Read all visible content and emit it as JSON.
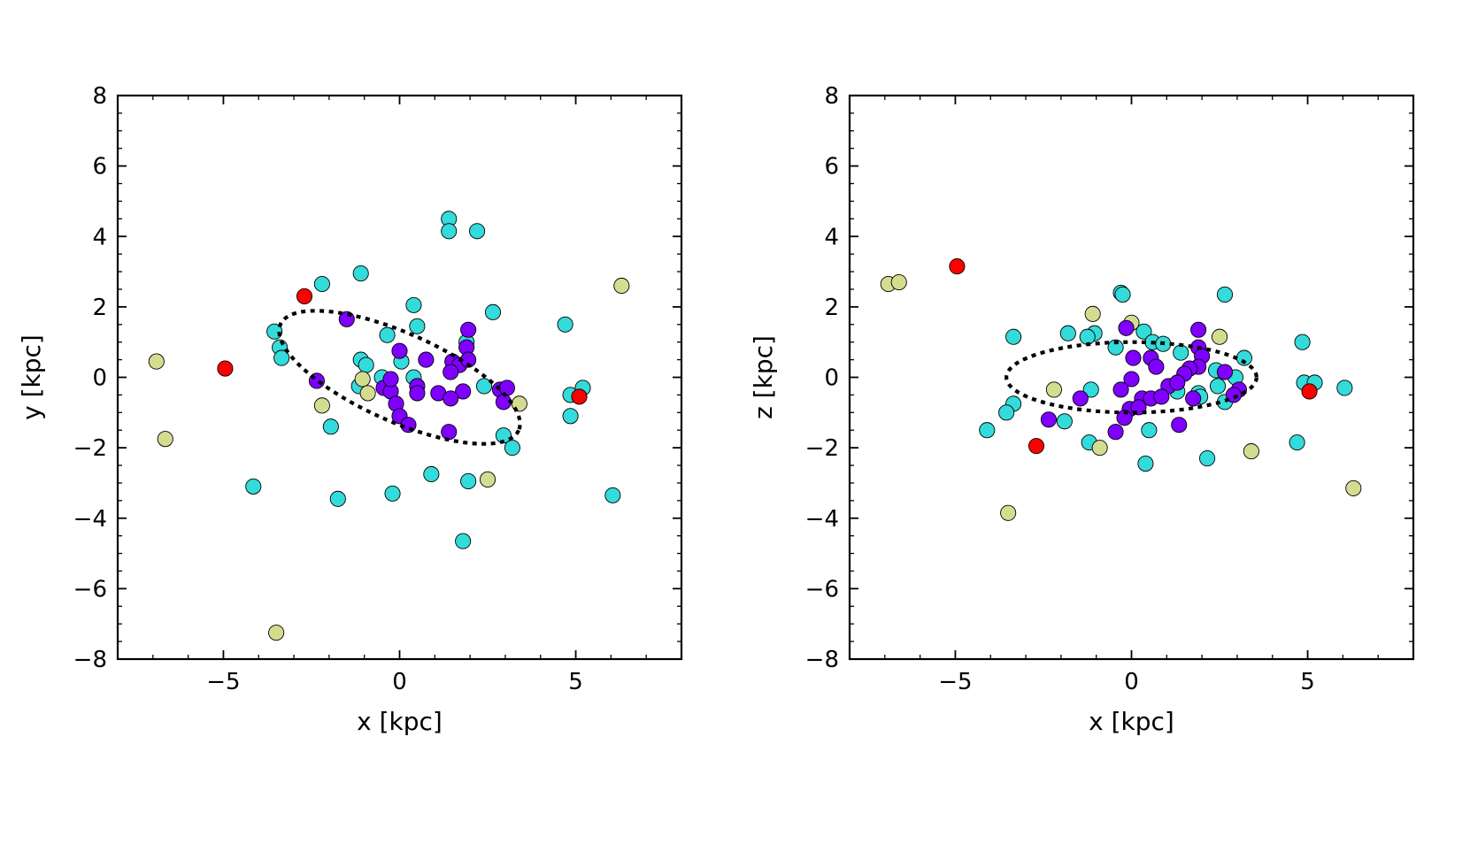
{
  "colors": {
    "purple": "#7f00ff",
    "cyan": "#33dbdb",
    "khaki": "#d4dd8f",
    "red": "#ff0000",
    "frame": "#000000",
    "ellipse": "#000000"
  },
  "chart_data": [
    {
      "type": "scatter",
      "id": "xy",
      "title": "",
      "xlabel": "x [kpc]",
      "ylabel": "y [kpc]",
      "xlim": [
        -8,
        8
      ],
      "ylim": [
        -8,
        8
      ],
      "xticks": [
        -5,
        0,
        5
      ],
      "xtick_labels": [
        "−5",
        "0",
        "5"
      ],
      "yticks": [
        -8,
        -6,
        -4,
        -2,
        0,
        2,
        4,
        6,
        8
      ],
      "ytick_labels": [
        "−8",
        "−6",
        "−4",
        "−2",
        "0",
        "2",
        "4",
        "6",
        "8"
      ],
      "ellipse": {
        "center": [
          0,
          0
        ],
        "semi_major": 3.7,
        "semi_minor": 1.25,
        "angle_deg": -24,
        "style": "dotted"
      },
      "series": [
        {
          "name": "cyan",
          "color": "cyan",
          "points": [
            [
              1.4,
              4.5
            ],
            [
              1.4,
              4.15
            ],
            [
              2.2,
              4.15
            ],
            [
              -1.1,
              2.95
            ],
            [
              -2.2,
              2.65
            ],
            [
              0.4,
              2.05
            ],
            [
              2.65,
              1.85
            ],
            [
              4.7,
              1.5
            ],
            [
              -3.55,
              1.3
            ],
            [
              0.5,
              1.45
            ],
            [
              -0.35,
              1.2
            ],
            [
              1.9,
              1.0
            ],
            [
              -3.4,
              0.85
            ],
            [
              -3.35,
              0.55
            ],
            [
              -1.1,
              0.5
            ],
            [
              -0.95,
              0.35
            ],
            [
              0.05,
              0.45
            ],
            [
              -0.5,
              0.0
            ],
            [
              0.4,
              0.0
            ],
            [
              -1.15,
              -0.25
            ],
            [
              2.4,
              -0.25
            ],
            [
              4.85,
              -0.5
            ],
            [
              5.2,
              -0.3
            ],
            [
              4.85,
              -1.1
            ],
            [
              -1.95,
              -1.4
            ],
            [
              2.95,
              -1.65
            ],
            [
              3.2,
              -2.0
            ],
            [
              0.9,
              -2.75
            ],
            [
              1.95,
              -2.95
            ],
            [
              -4.15,
              -3.1
            ],
            [
              -1.75,
              -3.45
            ],
            [
              -0.2,
              -3.3
            ],
            [
              6.05,
              -3.35
            ],
            [
              1.8,
              -4.65
            ]
          ]
        },
        {
          "name": "khaki",
          "color": "khaki",
          "points": [
            [
              6.3,
              2.6
            ],
            [
              -6.9,
              0.45
            ],
            [
              -6.65,
              -1.75
            ],
            [
              -1.05,
              -0.05
            ],
            [
              -0.9,
              -0.45
            ],
            [
              -2.2,
              -0.8
            ],
            [
              3.4,
              -0.75
            ],
            [
              2.5,
              -2.9
            ],
            [
              -3.5,
              -7.25
            ]
          ]
        },
        {
          "name": "red",
          "color": "red",
          "points": [
            [
              -2.7,
              2.3
            ],
            [
              -4.95,
              0.25
            ],
            [
              5.1,
              -0.55
            ]
          ]
        },
        {
          "name": "purple",
          "color": "purple",
          "points": [
            [
              -1.5,
              1.65
            ],
            [
              1.95,
              1.35
            ],
            [
              1.9,
              0.85
            ],
            [
              0.75,
              0.5
            ],
            [
              1.5,
              0.45
            ],
            [
              1.7,
              0.35
            ],
            [
              1.95,
              0.5
            ],
            [
              1.45,
              0.15
            ],
            [
              0.0,
              0.75
            ],
            [
              -2.35,
              -0.1
            ],
            [
              -0.45,
              -0.3
            ],
            [
              -0.25,
              -0.4
            ],
            [
              0.5,
              -0.25
            ],
            [
              0.5,
              -0.45
            ],
            [
              1.1,
              -0.45
            ],
            [
              1.8,
              -0.4
            ],
            [
              1.45,
              -0.6
            ],
            [
              2.85,
              -0.35
            ],
            [
              3.05,
              -0.3
            ],
            [
              2.95,
              -0.7
            ],
            [
              -0.1,
              -0.75
            ],
            [
              0.0,
              -1.1
            ],
            [
              0.25,
              -1.35
            ],
            [
              1.4,
              -1.55
            ],
            [
              -0.25,
              -0.05
            ]
          ]
        }
      ]
    },
    {
      "type": "scatter",
      "id": "xz",
      "title": "",
      "xlabel": "x [kpc]",
      "ylabel": "z [kpc]",
      "xlim": [
        -8,
        8
      ],
      "ylim": [
        -8,
        8
      ],
      "xticks": [
        -5,
        0,
        5
      ],
      "xtick_labels": [
        "−5",
        "0",
        "5"
      ],
      "yticks": [
        -8,
        -6,
        -4,
        -2,
        0,
        2,
        4,
        6,
        8
      ],
      "ytick_labels": [
        "−8",
        "−6",
        "−4",
        "−2",
        "0",
        "2",
        "4",
        "6",
        "8"
      ],
      "ellipse": {
        "center": [
          0,
          0
        ],
        "semi_major": 3.55,
        "semi_minor": 1.0,
        "angle_deg": 0,
        "style": "dotted"
      },
      "series": [
        {
          "name": "cyan",
          "color": "cyan",
          "points": [
            [
              -0.3,
              2.4
            ],
            [
              -0.25,
              2.35
            ],
            [
              2.65,
              2.35
            ],
            [
              -3.35,
              1.15
            ],
            [
              -1.8,
              1.25
            ],
            [
              -1.05,
              1.25
            ],
            [
              -1.25,
              1.15
            ],
            [
              0.35,
              1.3
            ],
            [
              0.6,
              1.0
            ],
            [
              0.9,
              0.95
            ],
            [
              -0.45,
              0.85
            ],
            [
              1.4,
              0.7
            ],
            [
              3.2,
              0.55
            ],
            [
              4.85,
              1.0
            ],
            [
              2.4,
              0.2
            ],
            [
              2.95,
              0.0
            ],
            [
              -1.15,
              -0.35
            ],
            [
              1.3,
              -0.4
            ],
            [
              1.9,
              -0.45
            ],
            [
              1.95,
              -0.55
            ],
            [
              4.9,
              -0.15
            ],
            [
              5.2,
              -0.15
            ],
            [
              6.05,
              -0.3
            ],
            [
              -3.35,
              -0.75
            ],
            [
              -3.55,
              -1.0
            ],
            [
              -1.9,
              -1.25
            ],
            [
              -4.1,
              -1.5
            ],
            [
              0.5,
              -1.5
            ],
            [
              -1.2,
              -1.85
            ],
            [
              4.7,
              -1.85
            ],
            [
              0.4,
              -2.45
            ],
            [
              2.15,
              -2.3
            ],
            [
              2.65,
              -0.7
            ],
            [
              2.45,
              -0.25
            ]
          ]
        },
        {
          "name": "khaki",
          "color": "khaki",
          "points": [
            [
              -6.9,
              2.65
            ],
            [
              -6.6,
              2.7
            ],
            [
              -1.1,
              1.8
            ],
            [
              0.0,
              1.55
            ],
            [
              2.5,
              1.15
            ],
            [
              -2.2,
              -0.35
            ],
            [
              -0.9,
              -2.0
            ],
            [
              3.4,
              -2.1
            ],
            [
              6.3,
              -3.15
            ],
            [
              -3.5,
              -3.85
            ]
          ]
        },
        {
          "name": "red",
          "color": "red",
          "points": [
            [
              -4.95,
              3.15
            ],
            [
              -2.7,
              -1.95
            ],
            [
              5.05,
              -0.4
            ]
          ]
        },
        {
          "name": "purple",
          "color": "purple",
          "points": [
            [
              -0.15,
              1.4
            ],
            [
              1.9,
              1.35
            ],
            [
              1.9,
              0.85
            ],
            [
              2.0,
              0.6
            ],
            [
              0.05,
              0.55
            ],
            [
              0.55,
              0.55
            ],
            [
              0.7,
              0.3
            ],
            [
              1.9,
              0.3
            ],
            [
              1.65,
              0.25
            ],
            [
              1.5,
              0.1
            ],
            [
              2.65,
              0.15
            ],
            [
              0.0,
              -0.05
            ],
            [
              1.05,
              -0.25
            ],
            [
              1.3,
              -0.15
            ],
            [
              3.05,
              -0.35
            ],
            [
              2.9,
              -0.5
            ],
            [
              -0.3,
              -0.35
            ],
            [
              0.3,
              -0.6
            ],
            [
              0.55,
              -0.6
            ],
            [
              0.85,
              -0.55
            ],
            [
              1.75,
              -0.6
            ],
            [
              -1.45,
              -0.6
            ],
            [
              -0.05,
              -0.9
            ],
            [
              0.2,
              -0.85
            ],
            [
              -0.2,
              -1.15
            ],
            [
              -2.35,
              -1.2
            ],
            [
              -0.45,
              -1.55
            ],
            [
              1.35,
              -1.35
            ]
          ]
        }
      ]
    }
  ]
}
